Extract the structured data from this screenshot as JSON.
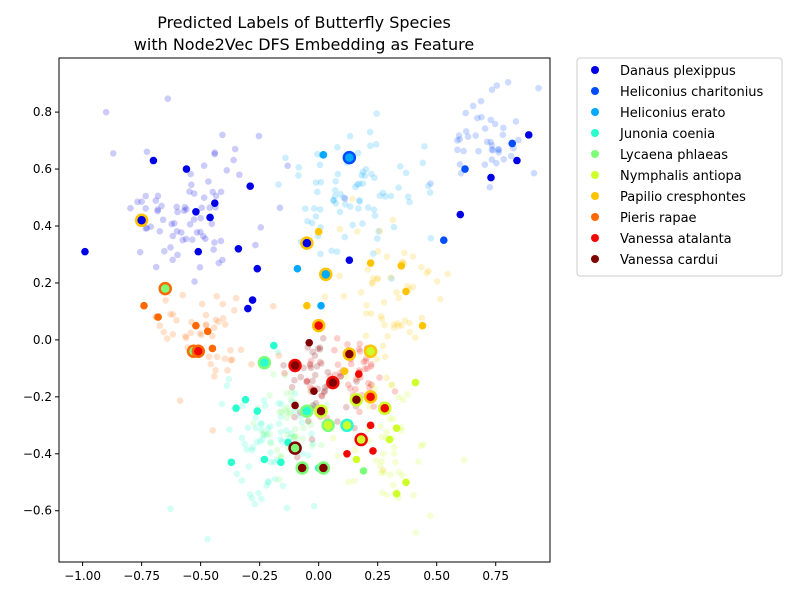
{
  "chart_data": {
    "type": "scatter",
    "title": [
      "Predicted Labels of Butterfly Species",
      "with Node2Vec DFS Embedding as Feature"
    ],
    "xlabel": "",
    "ylabel": "",
    "xlim": [
      -1.1,
      0.98
    ],
    "ylim": [
      -0.78,
      0.99
    ],
    "xticks": [
      -1.0,
      -0.75,
      -0.5,
      -0.25,
      0.0,
      0.25,
      0.5,
      0.75
    ],
    "xtick_labels": [
      "−1.00",
      "−0.75",
      "−0.50",
      "−0.25",
      "0.00",
      "0.25",
      "0.50",
      "0.75"
    ],
    "yticks": [
      -0.6,
      -0.4,
      -0.2,
      0.0,
      0.2,
      0.4,
      0.6,
      0.8
    ],
    "ytick_labels": [
      "−0.6",
      "−0.4",
      "−0.2",
      "0.0",
      "0.2",
      "0.4",
      "0.6",
      "0.8"
    ],
    "grid": false,
    "legend_position": "outside-top-right",
    "series": [
      {
        "name": "Danaus plexippus",
        "color": "#0000e6",
        "points": [
          [
            -0.99,
            0.31
          ],
          [
            -0.74,
            0.42
          ],
          [
            -0.7,
            0.63
          ],
          [
            -0.56,
            0.6
          ],
          [
            -0.52,
            0.45
          ],
          [
            -0.51,
            0.31
          ],
          [
            -0.46,
            0.43
          ],
          [
            -0.44,
            0.48
          ],
          [
            -0.34,
            0.32
          ],
          [
            -0.29,
            0.54
          ],
          [
            -0.26,
            0.25
          ],
          [
            -0.28,
            0.14
          ],
          [
            -0.3,
            0.11
          ],
          [
            -0.05,
            0.34
          ],
          [
            0.13,
            0.28
          ],
          [
            0.6,
            0.44
          ],
          [
            0.73,
            0.57
          ],
          [
            0.84,
            0.63
          ],
          [
            0.89,
            0.72
          ]
        ]
      },
      {
        "name": "Heliconius charitonius",
        "color": "#004cff",
        "points": [
          [
            0.13,
            0.64
          ],
          [
            0.53,
            0.35
          ],
          [
            0.62,
            0.6
          ],
          [
            0.82,
            0.69
          ]
        ]
      },
      {
        "name": "Heliconius erato",
        "color": "#00a9ff",
        "points": [
          [
            -0.09,
            0.25
          ],
          [
            0.02,
            0.65
          ],
          [
            0.01,
            0.12
          ],
          [
            0.03,
            0.23
          ]
        ]
      },
      {
        "name": "Junonia coenia",
        "color": "#29ffce",
        "points": [
          [
            -0.37,
            -0.43
          ],
          [
            -0.35,
            -0.24
          ],
          [
            -0.31,
            -0.21
          ],
          [
            -0.26,
            -0.25
          ],
          [
            -0.23,
            -0.08
          ],
          [
            -0.23,
            -0.42
          ],
          [
            -0.19,
            -0.02
          ],
          [
            -0.16,
            -0.43
          ],
          [
            -0.13,
            -0.36
          ],
          [
            -0.04,
            -0.25
          ],
          [
            0.0,
            -0.45
          ],
          [
            0.12,
            -0.3
          ]
        ]
      },
      {
        "name": "Lycaena phlaeas",
        "color": "#7dff7a",
        "points": [
          [
            -0.65,
            0.18
          ],
          [
            -0.53,
            -0.04
          ],
          [
            -0.07,
            -0.45
          ],
          [
            0.04,
            -0.3
          ],
          [
            0.19,
            -0.46
          ]
        ]
      },
      {
        "name": "Nymphalis antiopa",
        "color": "#ceff29",
        "points": [
          [
            0.16,
            -0.42
          ],
          [
            0.21,
            -0.04
          ],
          [
            0.3,
            -0.35
          ],
          [
            0.33,
            -0.31
          ],
          [
            0.33,
            -0.54
          ],
          [
            0.37,
            -0.5
          ],
          [
            0.41,
            -0.15
          ]
        ]
      },
      {
        "name": "Papilio cresphontes",
        "color": "#ffc400",
        "points": [
          [
            -0.05,
            0.12
          ],
          [
            0.0,
            0.38
          ],
          [
            0.11,
            -0.11
          ],
          [
            0.22,
            0.27
          ],
          [
            0.35,
            0.26
          ],
          [
            0.37,
            0.17
          ],
          [
            0.44,
            0.05
          ]
        ]
      },
      {
        "name": "Pieris rapae",
        "color": "#ff6800",
        "points": [
          [
            -0.74,
            0.12
          ],
          [
            -0.68,
            0.08
          ],
          [
            -0.52,
            0.05
          ],
          [
            -0.47,
            0.03
          ],
          [
            -0.45,
            -0.03
          ]
        ]
      },
      {
        "name": "Vanessa atalanta",
        "color": "#f10800",
        "points": [
          [
            -0.52,
            -0.04
          ],
          [
            0.05,
            -0.15
          ],
          [
            0.12,
            -0.4
          ],
          [
            0.17,
            -0.12
          ],
          [
            0.22,
            -0.3
          ],
          [
            0.23,
            -0.39
          ],
          [
            0.27,
            -0.24
          ]
        ]
      },
      {
        "name": "Vanessa cardui",
        "color": "#800000",
        "points": [
          [
            -0.1,
            -0.09
          ],
          [
            -0.1,
            -0.23
          ],
          [
            -0.06,
            -0.45
          ],
          [
            -0.04,
            -0.01
          ],
          [
            -0.02,
            -0.18
          ],
          [
            0.0,
            0.05
          ],
          [
            0.0,
            -0.25
          ],
          [
            0.13,
            -0.05
          ],
          [
            0.16,
            -0.21
          ]
        ]
      }
    ],
    "highlighted_points": [
      {
        "x": -0.75,
        "y": 0.42,
        "fill": "#0000e6",
        "ring": "#ffc400"
      },
      {
        "x": -0.05,
        "y": 0.34,
        "fill": "#0000e6",
        "ring": "#ffc400"
      },
      {
        "x": 0.13,
        "y": 0.64,
        "fill": "#00a9ff",
        "ring": "#004cff"
      },
      {
        "x": 0.03,
        "y": 0.23,
        "fill": "#00a9ff",
        "ring": "#ffc400"
      },
      {
        "x": -0.65,
        "y": 0.18,
        "fill": "#7dff7a",
        "ring": "#ff6800"
      },
      {
        "x": -0.53,
        "y": -0.04,
        "fill": "#7dff7a",
        "ring": "#ff6800"
      },
      {
        "x": -0.51,
        "y": -0.04,
        "fill": "#f10800",
        "ring": "#ff6800"
      },
      {
        "x": 0.0,
        "y": 0.05,
        "fill": "#f10800",
        "ring": "#ffc400"
      },
      {
        "x": -0.23,
        "y": -0.08,
        "fill": "#29ffce",
        "ring": "#7dff7a"
      },
      {
        "x": -0.1,
        "y": -0.09,
        "fill": "#800000",
        "ring": "#f10800"
      },
      {
        "x": 0.13,
        "y": -0.05,
        "fill": "#800000",
        "ring": "#ffc400"
      },
      {
        "x": 0.22,
        "y": -0.04,
        "fill": "#ceff29",
        "ring": "#ffc400"
      },
      {
        "x": 0.06,
        "y": -0.15,
        "fill": "#800000",
        "ring": "#f10800"
      },
      {
        "x": 0.16,
        "y": -0.21,
        "fill": "#800000",
        "ring": "#ceff29"
      },
      {
        "x": 0.22,
        "y": -0.2,
        "fill": "#f10800",
        "ring": "#ffc400"
      },
      {
        "x": 0.28,
        "y": -0.24,
        "fill": "#f10800",
        "ring": "#ceff29"
      },
      {
        "x": -0.05,
        "y": -0.25,
        "fill": "#29ffce",
        "ring": "#7dff7a"
      },
      {
        "x": 0.01,
        "y": -0.25,
        "fill": "#800000",
        "ring": "#ceff29"
      },
      {
        "x": 0.04,
        "y": -0.3,
        "fill": "#ceff29",
        "ring": "#7dff7a"
      },
      {
        "x": 0.12,
        "y": -0.3,
        "fill": "#ceff29",
        "ring": "#29ffce"
      },
      {
        "x": 0.18,
        "y": -0.35,
        "fill": "#ceff29",
        "ring": "#f10800"
      },
      {
        "x": -0.1,
        "y": -0.38,
        "fill": "#7dff7a",
        "ring": "#800000"
      },
      {
        "x": -0.07,
        "y": -0.45,
        "fill": "#800000",
        "ring": "#7dff7a"
      },
      {
        "x": 0.02,
        "y": -0.45,
        "fill": "#800000",
        "ring": "#7dff7a"
      }
    ],
    "background_clusters": [
      {
        "color": "#0000e6",
        "cx": -0.55,
        "cy": 0.45,
        "sx": 0.17,
        "sy": 0.12,
        "n": 80
      },
      {
        "color": "#004cff",
        "cx": 0.7,
        "cy": 0.7,
        "sx": 0.12,
        "sy": 0.1,
        "n": 45
      },
      {
        "color": "#00a9ff",
        "cx": 0.1,
        "cy": 0.5,
        "sx": 0.12,
        "sy": 0.12,
        "n": 55
      },
      {
        "color": "#00a9ff",
        "cx": 0.3,
        "cy": 0.55,
        "sx": 0.1,
        "sy": 0.1,
        "n": 25
      },
      {
        "color": "#29ffce",
        "cx": -0.2,
        "cy": -0.35,
        "sx": 0.1,
        "sy": 0.1,
        "n": 70
      },
      {
        "color": "#7dff7a",
        "cx": -0.12,
        "cy": -0.28,
        "sx": 0.08,
        "sy": 0.08,
        "n": 45
      },
      {
        "color": "#ceff29",
        "cx": 0.3,
        "cy": -0.4,
        "sx": 0.1,
        "sy": 0.12,
        "n": 50
      },
      {
        "color": "#ffc400",
        "cx": 0.3,
        "cy": 0.15,
        "sx": 0.12,
        "sy": 0.15,
        "n": 60
      },
      {
        "color": "#ff6800",
        "cx": -0.45,
        "cy": 0.0,
        "sx": 0.14,
        "sy": 0.1,
        "n": 50
      },
      {
        "color": "#f10800",
        "cx": 0.1,
        "cy": -0.12,
        "sx": 0.1,
        "sy": 0.08,
        "n": 55
      },
      {
        "color": "#800000",
        "cx": 0.0,
        "cy": -0.15,
        "sx": 0.07,
        "sy": 0.1,
        "n": 45
      }
    ]
  }
}
